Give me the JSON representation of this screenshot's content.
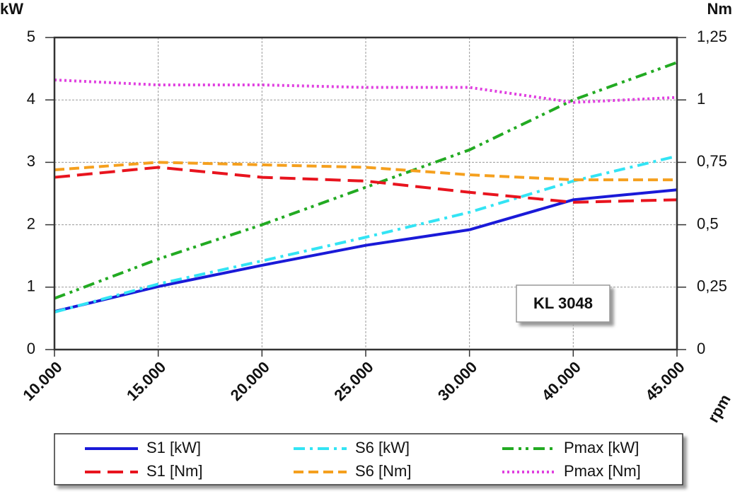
{
  "chart_data": {
    "type": "line",
    "y_label": "kW",
    "y2_label": "Nm",
    "x_label": "rpm",
    "annotation": "KL 3048",
    "categories": [
      "10.000",
      "15.000",
      "20.000",
      "25.000",
      "30.000",
      "40.000",
      "45.000"
    ],
    "ylim": [
      0,
      5
    ],
    "yticks": [
      0,
      1,
      2,
      3,
      4,
      5
    ],
    "y2lim": [
      0,
      1.25
    ],
    "y2ticks": [
      0,
      {
        "value": 0.25,
        "label": "0,25"
      },
      {
        "value": 0.5,
        "label": "0,5"
      },
      {
        "value": 0.75,
        "label": "0,75"
      },
      1,
      {
        "value": 1.25,
        "label": "1,25"
      }
    ],
    "grid": true,
    "series": [
      {
        "name": "S1 [kW]",
        "color": "#1a1ad8",
        "dash": "solid",
        "values": [
          0.61,
          1.01,
          1.35,
          1.67,
          1.92,
          2.4,
          2.56
        ]
      },
      {
        "name": "S6 [kW]",
        "color": "#33e4f4",
        "dash": "dashdot",
        "values": [
          0.6,
          1.05,
          1.42,
          1.8,
          2.2,
          2.7,
          3.1
        ]
      },
      {
        "name": "Pmax [kW]",
        "color": "#22aa22",
        "dash": "dashdotdot",
        "values": [
          0.82,
          1.45,
          2.0,
          2.6,
          3.2,
          4.0,
          4.6
        ]
      },
      {
        "name": "S1 [Nm]",
        "color": "#e8141e",
        "dash": "longdash",
        "axis": "y2",
        "values": [
          0.69,
          0.73,
          0.69,
          0.675,
          0.63,
          0.59,
          0.6
        ]
      },
      {
        "name": "S6 [Nm]",
        "color": "#f5a01e",
        "dash": "dash",
        "axis": "y2",
        "values": [
          0.72,
          0.75,
          0.74,
          0.73,
          0.7,
          0.68,
          0.68
        ]
      },
      {
        "name": "Pmax [Nm]",
        "color": "#e040e0",
        "dash": "dot",
        "axis": "y2",
        "values": [
          1.08,
          1.06,
          1.06,
          1.05,
          1.05,
          0.99,
          1.01
        ]
      }
    ]
  }
}
